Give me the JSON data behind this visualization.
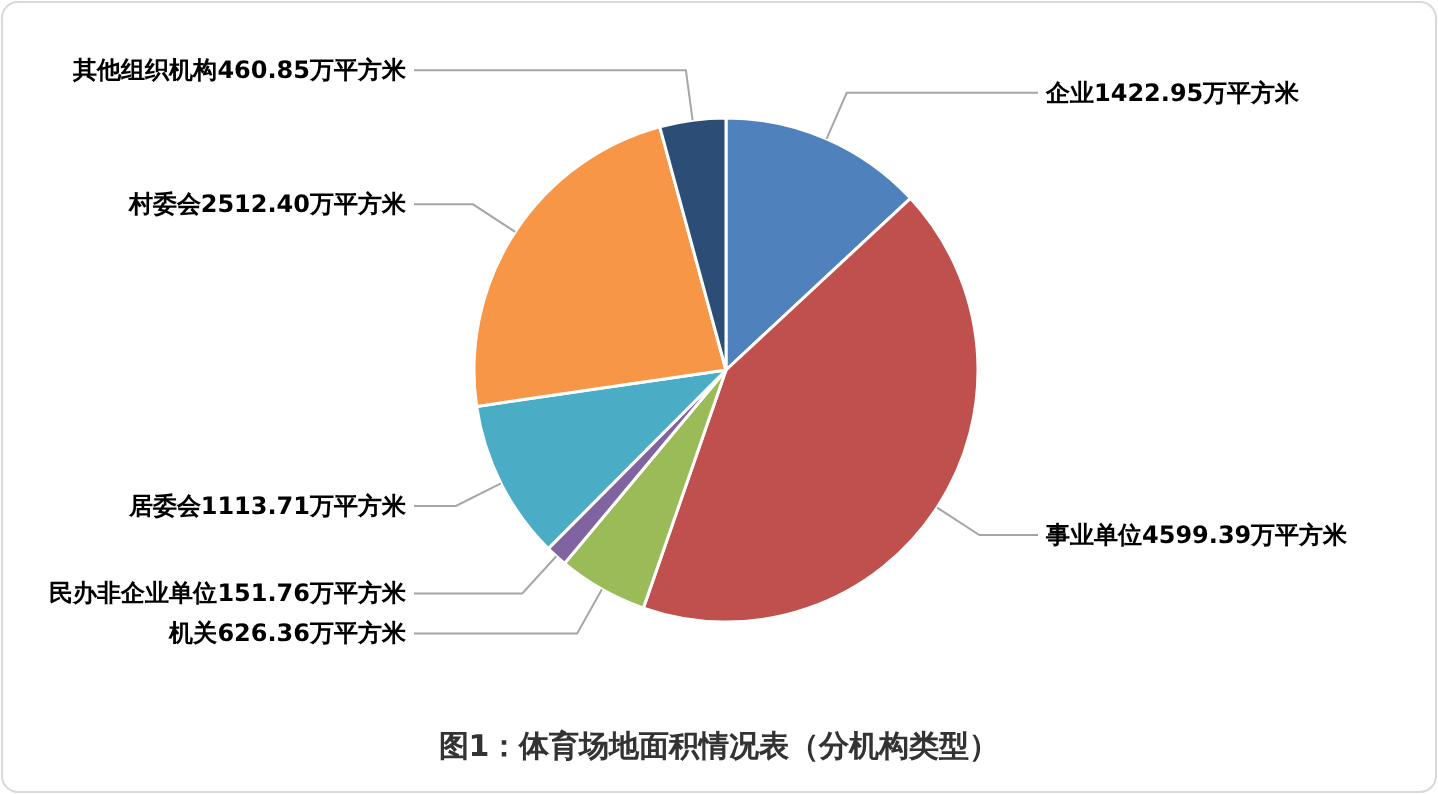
{
  "chart_data": {
    "type": "pie",
    "title": "图1：体育场地面积情况表（分机构类型）",
    "categories": [
      "企业",
      "事业单位",
      "机关",
      "民办非企业单位",
      "居委会",
      "村委会",
      "其他组织机构"
    ],
    "values": [
      1422.95,
      4599.39,
      626.36,
      151.76,
      1113.71,
      2512.4,
      460.85
    ],
    "value_labels": [
      "1422.95万平方米",
      "4599.39万平方米",
      "626.36万平方米",
      "151.76万平方米",
      "1113.71万平方米",
      "2512.40万平方米",
      "460.85万平方米"
    ],
    "colors": [
      "#4f81bd",
      "#c0504d",
      "#9bbb59",
      "#8064a2",
      "#4bacc6",
      "#f79646",
      "#2c4d75"
    ]
  }
}
